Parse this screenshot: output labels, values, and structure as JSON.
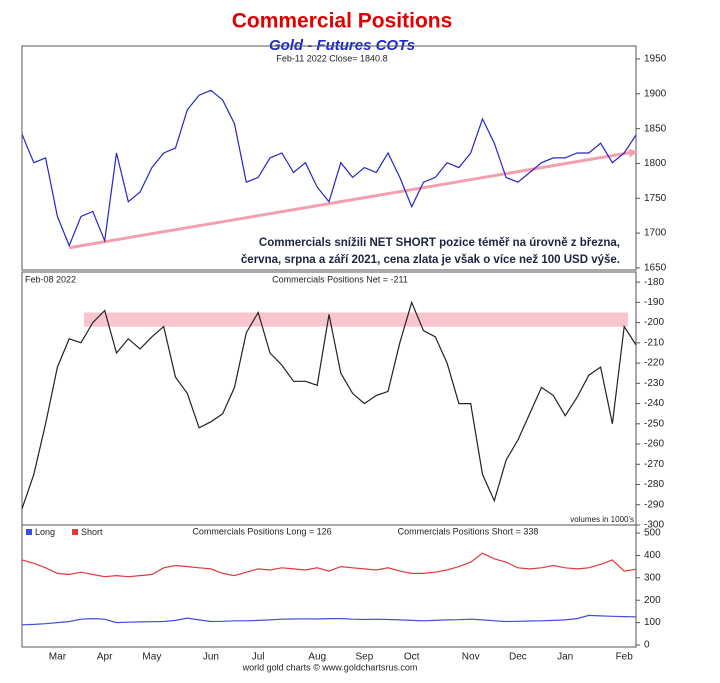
{
  "title": "Commercial Positions",
  "subtitle": "Gold - Futures COTs",
  "source": "world gold charts © www.goldchartsrus.com",
  "chart_data": [
    {
      "type": "line",
      "label": "Feb-11 2022 Close= 1840.8",
      "color": "#2626c8",
      "values": [
        1842,
        1801,
        1808,
        1724,
        1682,
        1724,
        1731,
        1689,
        1815,
        1745,
        1759,
        1794,
        1815,
        1822,
        1877,
        1898,
        1905,
        1891,
        1857,
        1773,
        1780,
        1808,
        1815,
        1787,
        1801,
        1766,
        1745,
        1801,
        1780,
        1794,
        1787,
        1815,
        1780,
        1738,
        1773,
        1780,
        1801,
        1794,
        1815,
        1864,
        1829,
        1780,
        1773,
        1787,
        1801,
        1808,
        1808,
        1815,
        1815,
        1829,
        1801,
        1815,
        1840.8
      ],
      "ylim": [
        1647,
        1960
      ],
      "yticks": [
        1650,
        1700,
        1750,
        1800,
        1850,
        1900,
        1950
      ],
      "annotation": [
        "Commercials snížili NET SHORT pozice téměř na úrovně z března,",
        "června, srpna a září 2021, cena zlata je však o více než 100 USD výše."
      ],
      "trend_line": {
        "color": "#f2a0ab",
        "from": [
          4,
          1679
        ],
        "to": [
          52,
          1817
        ]
      }
    },
    {
      "type": "line",
      "date_label": "Feb-08 2022",
      "label": "Commercials Positions Net = -211",
      "note": "volumes in 1000's",
      "color": "#222222",
      "values": [
        -292,
        -275,
        -250,
        -222,
        -208,
        -210,
        -200,
        -194,
        -215,
        -208,
        -213,
        -207,
        -202,
        -227,
        -235,
        -252,
        -249,
        -245,
        -232,
        -205,
        -195,
        -215,
        -221,
        -229,
        -229,
        -231,
        -196,
        -225,
        -235,
        -240,
        -236,
        -234,
        -210,
        -190,
        -204,
        -207,
        -220,
        -240,
        -240,
        -275,
        -288,
        -268,
        -258,
        -245,
        -232,
        -236,
        -246,
        -237,
        -226,
        -222,
        -250,
        -202,
        -211
      ],
      "band": {
        "range": [
          -202,
          -195
        ],
        "color": "#f8c4cd"
      },
      "ylim": [
        -300,
        -175
      ],
      "yticks": [
        -180,
        -190,
        -200,
        -210,
        -220,
        -230,
        -240,
        -250,
        -260,
        -270,
        -280,
        -290,
        -300
      ]
    },
    {
      "type": "line",
      "legend": "top-left",
      "labels": [
        "Commercials Positions Long = 126",
        "Commercials Positions Short = 338"
      ],
      "series": [
        {
          "name": "Long",
          "color": "#3f4fe0",
          "values": [
            90,
            92,
            95,
            100,
            105,
            115,
            118,
            115,
            100,
            102,
            103,
            104,
            105,
            110,
            120,
            112,
            105,
            106,
            108,
            108,
            110,
            112,
            115,
            116,
            117,
            116,
            118,
            118,
            115,
            114,
            115,
            114,
            112,
            110,
            108,
            110,
            112,
            113,
            115,
            112,
            108,
            105,
            106,
            107,
            108,
            110,
            112,
            118,
            132,
            130,
            128,
            127,
            126
          ]
        },
        {
          "name": "Short",
          "color": "#e23a3a",
          "values": [
            380,
            365,
            345,
            320,
            315,
            325,
            315,
            305,
            310,
            305,
            310,
            315,
            345,
            355,
            350,
            345,
            340,
            320,
            310,
            325,
            340,
            335,
            345,
            340,
            335,
            345,
            330,
            350,
            345,
            340,
            335,
            345,
            330,
            320,
            320,
            325,
            335,
            350,
            370,
            410,
            385,
            370,
            345,
            340,
            345,
            355,
            345,
            340,
            345,
            360,
            380,
            330,
            338
          ]
        }
      ],
      "categories": [
        null,
        null,
        null,
        "Mar",
        null,
        null,
        null,
        "Apr",
        null,
        null,
        null,
        "May",
        null,
        null,
        null,
        null,
        "Jun",
        null,
        null,
        null,
        "Jul",
        null,
        null,
        null,
        null,
        "Aug",
        null,
        null,
        null,
        "Sep",
        null,
        null,
        null,
        "Oct",
        null,
        null,
        null,
        null,
        "Nov",
        null,
        null,
        null,
        "Dec",
        null,
        null,
        null,
        "Jan",
        null,
        null,
        null,
        null,
        "Feb",
        null
      ],
      "ylim": [
        -9,
        536
      ],
      "yticks": [
        0,
        100,
        200,
        300,
        400,
        500
      ]
    }
  ]
}
